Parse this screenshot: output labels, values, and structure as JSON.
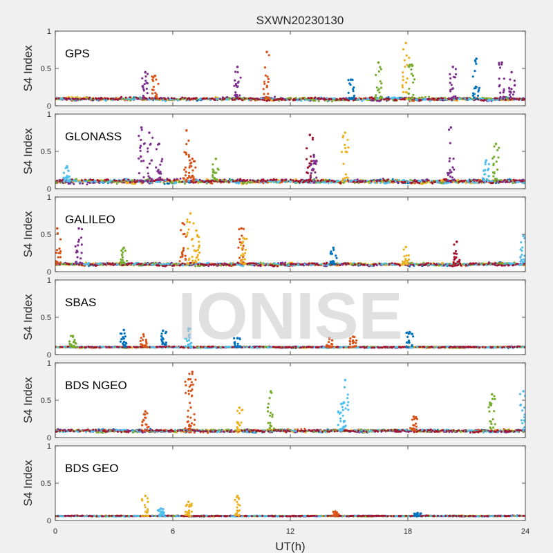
{
  "chart_data": {
    "type": "scatter",
    "title": "SXWN20230130",
    "xlabel": "UT(h)",
    "ylabel": "S4 Index",
    "xlim": [
      0,
      24
    ],
    "ylim": [
      0,
      1
    ],
    "x_ticks": [
      "0",
      "6",
      "12",
      "18",
      "24"
    ],
    "y_ticks": [
      "0",
      "0.5",
      "1"
    ],
    "grid": false,
    "watermark": "IONISE",
    "series_colors": [
      "#0072bd",
      "#d95319",
      "#edb120",
      "#7e2f8e",
      "#77ac30",
      "#4dbeee",
      "#a2142f"
    ],
    "panels": [
      {
        "label": "GPS",
        "baseline": 0.09,
        "noise": 0.045,
        "spikes": [
          {
            "x": 4.6,
            "y": 0.45,
            "series": 3
          },
          {
            "x": 5.1,
            "y": 0.4,
            "series": 1
          },
          {
            "x": 9.3,
            "y": 0.52,
            "series": 3
          },
          {
            "x": 10.8,
            "y": 0.72,
            "series": 1
          },
          {
            "x": 15.1,
            "y": 0.35,
            "series": 0
          },
          {
            "x": 16.5,
            "y": 0.58,
            "series": 4
          },
          {
            "x": 17.9,
            "y": 0.84,
            "series": 2
          },
          {
            "x": 18.2,
            "y": 0.55,
            "series": 4
          },
          {
            "x": 20.3,
            "y": 0.52,
            "series": 3
          },
          {
            "x": 21.5,
            "y": 0.63,
            "series": 0
          },
          {
            "x": 22.8,
            "y": 0.58,
            "series": 3
          },
          {
            "x": 23.3,
            "y": 0.45,
            "series": 3
          }
        ]
      },
      {
        "label": "GLONASS",
        "baseline": 0.1,
        "noise": 0.06,
        "spikes": [
          {
            "x": 0.6,
            "y": 0.3,
            "series": 5
          },
          {
            "x": 4.4,
            "y": 0.82,
            "series": 3
          },
          {
            "x": 4.8,
            "y": 0.75,
            "series": 3
          },
          {
            "x": 5.3,
            "y": 0.6,
            "series": 3
          },
          {
            "x": 6.7,
            "y": 0.78,
            "series": 1
          },
          {
            "x": 7.0,
            "y": 0.4,
            "series": 1
          },
          {
            "x": 8.2,
            "y": 0.4,
            "series": 4
          },
          {
            "x": 13.0,
            "y": 0.72,
            "series": 6
          },
          {
            "x": 13.2,
            "y": 0.45,
            "series": 3
          },
          {
            "x": 14.8,
            "y": 0.75,
            "series": 2
          },
          {
            "x": 20.2,
            "y": 0.82,
            "series": 3
          },
          {
            "x": 22.5,
            "y": 0.6,
            "series": 4
          },
          {
            "x": 22.0,
            "y": 0.38,
            "series": 5
          }
        ]
      },
      {
        "label": "GALILEO",
        "baseline": 0.1,
        "noise": 0.045,
        "spikes": [
          {
            "x": 0.1,
            "y": 0.58,
            "series": 1
          },
          {
            "x": 1.2,
            "y": 0.58,
            "series": 3
          },
          {
            "x": 3.5,
            "y": 0.32,
            "series": 4
          },
          {
            "x": 6.5,
            "y": 0.65,
            "series": 1
          },
          {
            "x": 6.9,
            "y": 0.78,
            "series": 2
          },
          {
            "x": 7.2,
            "y": 0.55,
            "series": 2
          },
          {
            "x": 9.5,
            "y": 0.58,
            "series": 1
          },
          {
            "x": 9.6,
            "y": 0.45,
            "series": 2
          },
          {
            "x": 14.2,
            "y": 0.32,
            "series": 0
          },
          {
            "x": 17.9,
            "y": 0.33,
            "series": 2
          },
          {
            "x": 20.5,
            "y": 0.4,
            "series": 6
          },
          {
            "x": 23.9,
            "y": 0.48,
            "series": 5
          }
        ]
      },
      {
        "label": "SBAS",
        "baseline": 0.1,
        "noise": 0.02,
        "spikes": [
          {
            "x": 0.9,
            "y": 0.25,
            "series": 4
          },
          {
            "x": 3.5,
            "y": 0.33,
            "series": 0
          },
          {
            "x": 4.5,
            "y": 0.27,
            "series": 1
          },
          {
            "x": 5.5,
            "y": 0.32,
            "series": 0
          },
          {
            "x": 6.8,
            "y": 0.35,
            "series": 5
          },
          {
            "x": 9.3,
            "y": 0.22,
            "series": 0
          },
          {
            "x": 14.0,
            "y": 0.22,
            "series": 1
          },
          {
            "x": 15.2,
            "y": 0.24,
            "series": 1
          },
          {
            "x": 18.1,
            "y": 0.3,
            "series": 0
          }
        ]
      },
      {
        "label": "BDS NGEO",
        "baseline": 0.09,
        "noise": 0.04,
        "spikes": [
          {
            "x": 4.6,
            "y": 0.35,
            "series": 1
          },
          {
            "x": 6.8,
            "y": 0.78,
            "series": 1
          },
          {
            "x": 7.0,
            "y": 0.88,
            "series": 1
          },
          {
            "x": 9.4,
            "y": 0.4,
            "series": 2
          },
          {
            "x": 11.0,
            "y": 0.62,
            "series": 4
          },
          {
            "x": 14.8,
            "y": 0.77,
            "series": 5
          },
          {
            "x": 14.6,
            "y": 0.45,
            "series": 5
          },
          {
            "x": 18.3,
            "y": 0.28,
            "series": 1
          },
          {
            "x": 22.3,
            "y": 0.58,
            "series": 4
          },
          {
            "x": 23.9,
            "y": 0.62,
            "series": 5
          }
        ]
      },
      {
        "label": "BDS GEO",
        "baseline": 0.06,
        "noise": 0.012,
        "spikes": [
          {
            "x": 4.6,
            "y": 0.33,
            "series": 2
          },
          {
            "x": 5.4,
            "y": 0.16,
            "series": 5
          },
          {
            "x": 6.8,
            "y": 0.25,
            "series": 2
          },
          {
            "x": 9.3,
            "y": 0.33,
            "series": 2
          },
          {
            "x": 14.3,
            "y": 0.12,
            "series": 1
          },
          {
            "x": 18.5,
            "y": 0.1,
            "series": 0
          }
        ]
      }
    ]
  }
}
